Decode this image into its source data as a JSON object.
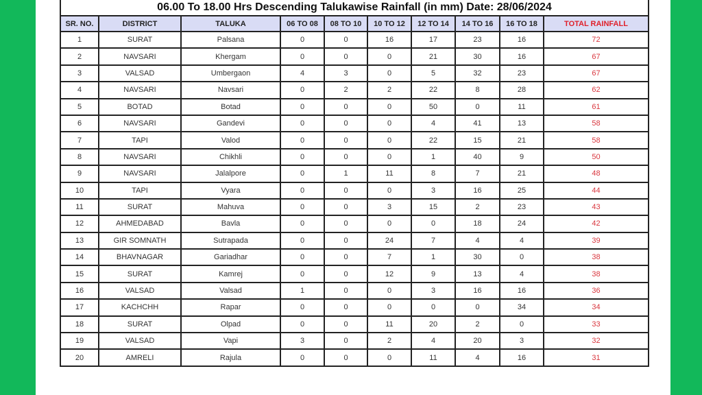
{
  "colors": {
    "frame": "#12b85a",
    "header_bg": "#d9dcf5",
    "total_text": "#d9363e"
  },
  "title": "06.00 To 18.00 Hrs Descending Talukawise Rainfall (in mm) Date: 28/06/2024",
  "headers": [
    "SR. NO.",
    "DISTRICT",
    "TALUKA",
    "06 TO 08",
    "08 TO 10",
    "10 TO 12",
    "12 TO 14",
    "14 TO 16",
    "16 TO 18",
    "TOTAL RAINFALL"
  ],
  "rows": [
    [
      "1",
      "SURAT",
      "Palsana",
      "0",
      "0",
      "16",
      "17",
      "23",
      "16",
      "72"
    ],
    [
      "2",
      "NAVSARI",
      "Khergam",
      "0",
      "0",
      "0",
      "21",
      "30",
      "16",
      "67"
    ],
    [
      "3",
      "VALSAD",
      "Umbergaon",
      "4",
      "3",
      "0",
      "5",
      "32",
      "23",
      "67"
    ],
    [
      "4",
      "NAVSARI",
      "Navsari",
      "0",
      "2",
      "2",
      "22",
      "8",
      "28",
      "62"
    ],
    [
      "5",
      "BOTAD",
      "Botad",
      "0",
      "0",
      "0",
      "50",
      "0",
      "11",
      "61"
    ],
    [
      "6",
      "NAVSARI",
      "Gandevi",
      "0",
      "0",
      "0",
      "4",
      "41",
      "13",
      "58"
    ],
    [
      "7",
      "TAPI",
      "Valod",
      "0",
      "0",
      "0",
      "22",
      "15",
      "21",
      "58"
    ],
    [
      "8",
      "NAVSARI",
      "Chikhli",
      "0",
      "0",
      "0",
      "1",
      "40",
      "9",
      "50"
    ],
    [
      "9",
      "NAVSARI",
      "Jalalpore",
      "0",
      "1",
      "11",
      "8",
      "7",
      "21",
      "48"
    ],
    [
      "10",
      "TAPI",
      "Vyara",
      "0",
      "0",
      "0",
      "3",
      "16",
      "25",
      "44"
    ],
    [
      "11",
      "SURAT",
      "Mahuva",
      "0",
      "0",
      "3",
      "15",
      "2",
      "23",
      "43"
    ],
    [
      "12",
      "AHMEDABAD",
      "Bavla",
      "0",
      "0",
      "0",
      "0",
      "18",
      "24",
      "42"
    ],
    [
      "13",
      "GIR SOMNATH",
      "Sutrapada",
      "0",
      "0",
      "24",
      "7",
      "4",
      "4",
      "39"
    ],
    [
      "14",
      "BHAVNAGAR",
      "Gariadhar",
      "0",
      "0",
      "7",
      "1",
      "30",
      "0",
      "38"
    ],
    [
      "15",
      "SURAT",
      "Kamrej",
      "0",
      "0",
      "12",
      "9",
      "13",
      "4",
      "38"
    ],
    [
      "16",
      "VALSAD",
      "Valsad",
      "1",
      "0",
      "0",
      "3",
      "16",
      "16",
      "36"
    ],
    [
      "17",
      "KACHCHH",
      "Rapar",
      "0",
      "0",
      "0",
      "0",
      "0",
      "34",
      "34"
    ],
    [
      "18",
      "SURAT",
      "Olpad",
      "0",
      "0",
      "11",
      "20",
      "2",
      "0",
      "33"
    ],
    [
      "19",
      "VALSAD",
      "Vapi",
      "3",
      "0",
      "2",
      "4",
      "20",
      "3",
      "32"
    ],
    [
      "20",
      "AMRELI",
      "Rajula",
      "0",
      "0",
      "0",
      "11",
      "4",
      "16",
      "31"
    ]
  ]
}
